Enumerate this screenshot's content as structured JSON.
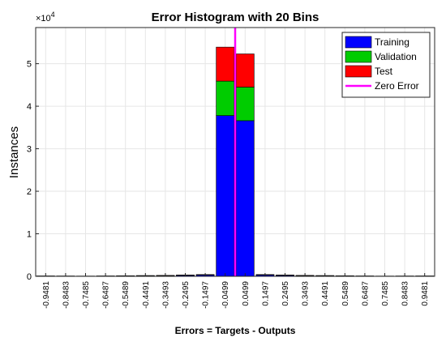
{
  "chart_data": {
    "type": "bar",
    "stacked": true,
    "title": "Error Histogram with 20 Bins",
    "xlabel": "Errors = Targets - Outputs",
    "ylabel": "Instances",
    "y_multiplier_label": "×10",
    "y_multiplier_exponent": "4",
    "ylim": [
      0,
      58500
    ],
    "yticks": [
      0,
      10000,
      20000,
      30000,
      40000,
      50000
    ],
    "ytick_labels": [
      "0",
      "1",
      "2",
      "3",
      "4",
      "5"
    ],
    "grid": true,
    "legend_position": "top-right",
    "categories": [
      "-0.9481",
      "-0.8483",
      "-0.7485",
      "-0.6487",
      "-0.5489",
      "-0.4491",
      "-0.3493",
      "-0.2495",
      "-0.1497",
      "-0.0499",
      "0.0499",
      "0.1497",
      "0.2495",
      "0.3493",
      "0.4491",
      "0.5489",
      "0.6487",
      "0.7485",
      "0.8483",
      "0.9481"
    ],
    "series": [
      {
        "name": "Training",
        "color": "#0000ff",
        "values": [
          60,
          50,
          40,
          60,
          100,
          120,
          160,
          220,
          300,
          37800,
          36600,
          300,
          220,
          160,
          120,
          100,
          60,
          40,
          50,
          60
        ]
      },
      {
        "name": "Validation",
        "color": "#00cc00",
        "values": [
          10,
          10,
          10,
          10,
          20,
          30,
          30,
          50,
          60,
          8100,
          7900,
          60,
          50,
          30,
          30,
          20,
          10,
          10,
          10,
          10
        ]
      },
      {
        "name": "Test",
        "color": "#ff0000",
        "values": [
          10,
          10,
          10,
          10,
          20,
          30,
          30,
          50,
          60,
          8000,
          7800,
          60,
          50,
          30,
          30,
          20,
          10,
          10,
          10,
          10
        ]
      }
    ],
    "zero_error": {
      "name": "Zero Error",
      "color": "#ff00ff",
      "x": 0
    }
  }
}
